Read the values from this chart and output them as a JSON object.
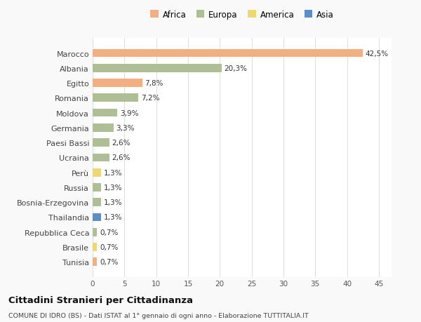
{
  "categories": [
    "Marocco",
    "Albania",
    "Egitto",
    "Romania",
    "Moldova",
    "Germania",
    "Paesi Bassi",
    "Ucraina",
    "Perù",
    "Russia",
    "Bosnia-Erzegovina",
    "Thailandia",
    "Repubblica Ceca",
    "Brasile",
    "Tunisia"
  ],
  "values": [
    42.5,
    20.3,
    7.8,
    7.2,
    3.9,
    3.3,
    2.6,
    2.6,
    1.3,
    1.3,
    1.3,
    1.3,
    0.7,
    0.7,
    0.7
  ],
  "labels": [
    "42,5%",
    "20,3%",
    "7,8%",
    "7,2%",
    "3,9%",
    "3,3%",
    "2,6%",
    "2,6%",
    "1,3%",
    "1,3%",
    "1,3%",
    "1,3%",
    "0,7%",
    "0,7%",
    "0,7%"
  ],
  "continents": [
    "Africa",
    "Europa",
    "Africa",
    "Europa",
    "Europa",
    "Europa",
    "Europa",
    "Europa",
    "America",
    "Europa",
    "Europa",
    "Asia",
    "Europa",
    "America",
    "Africa"
  ],
  "continent_colors": {
    "Africa": "#F2AF82",
    "Europa": "#AEBF96",
    "America": "#F0D870",
    "Asia": "#5B8DC8"
  },
  "legend_order": [
    "Africa",
    "Europa",
    "America",
    "Asia"
  ],
  "title": "Cittadini Stranieri per Cittadinanza",
  "subtitle": "COMUNE DI IDRO (BS) - Dati ISTAT al 1° gennaio di ogni anno - Elaborazione TUTTITALIA.IT",
  "xlim": [
    0,
    47
  ],
  "xticks": [
    0,
    5,
    10,
    15,
    20,
    25,
    30,
    35,
    40,
    45
  ],
  "background_color": "#f9f9f9",
  "bar_background": "#ffffff",
  "grid_color": "#dddddd",
  "bar_height": 0.55
}
